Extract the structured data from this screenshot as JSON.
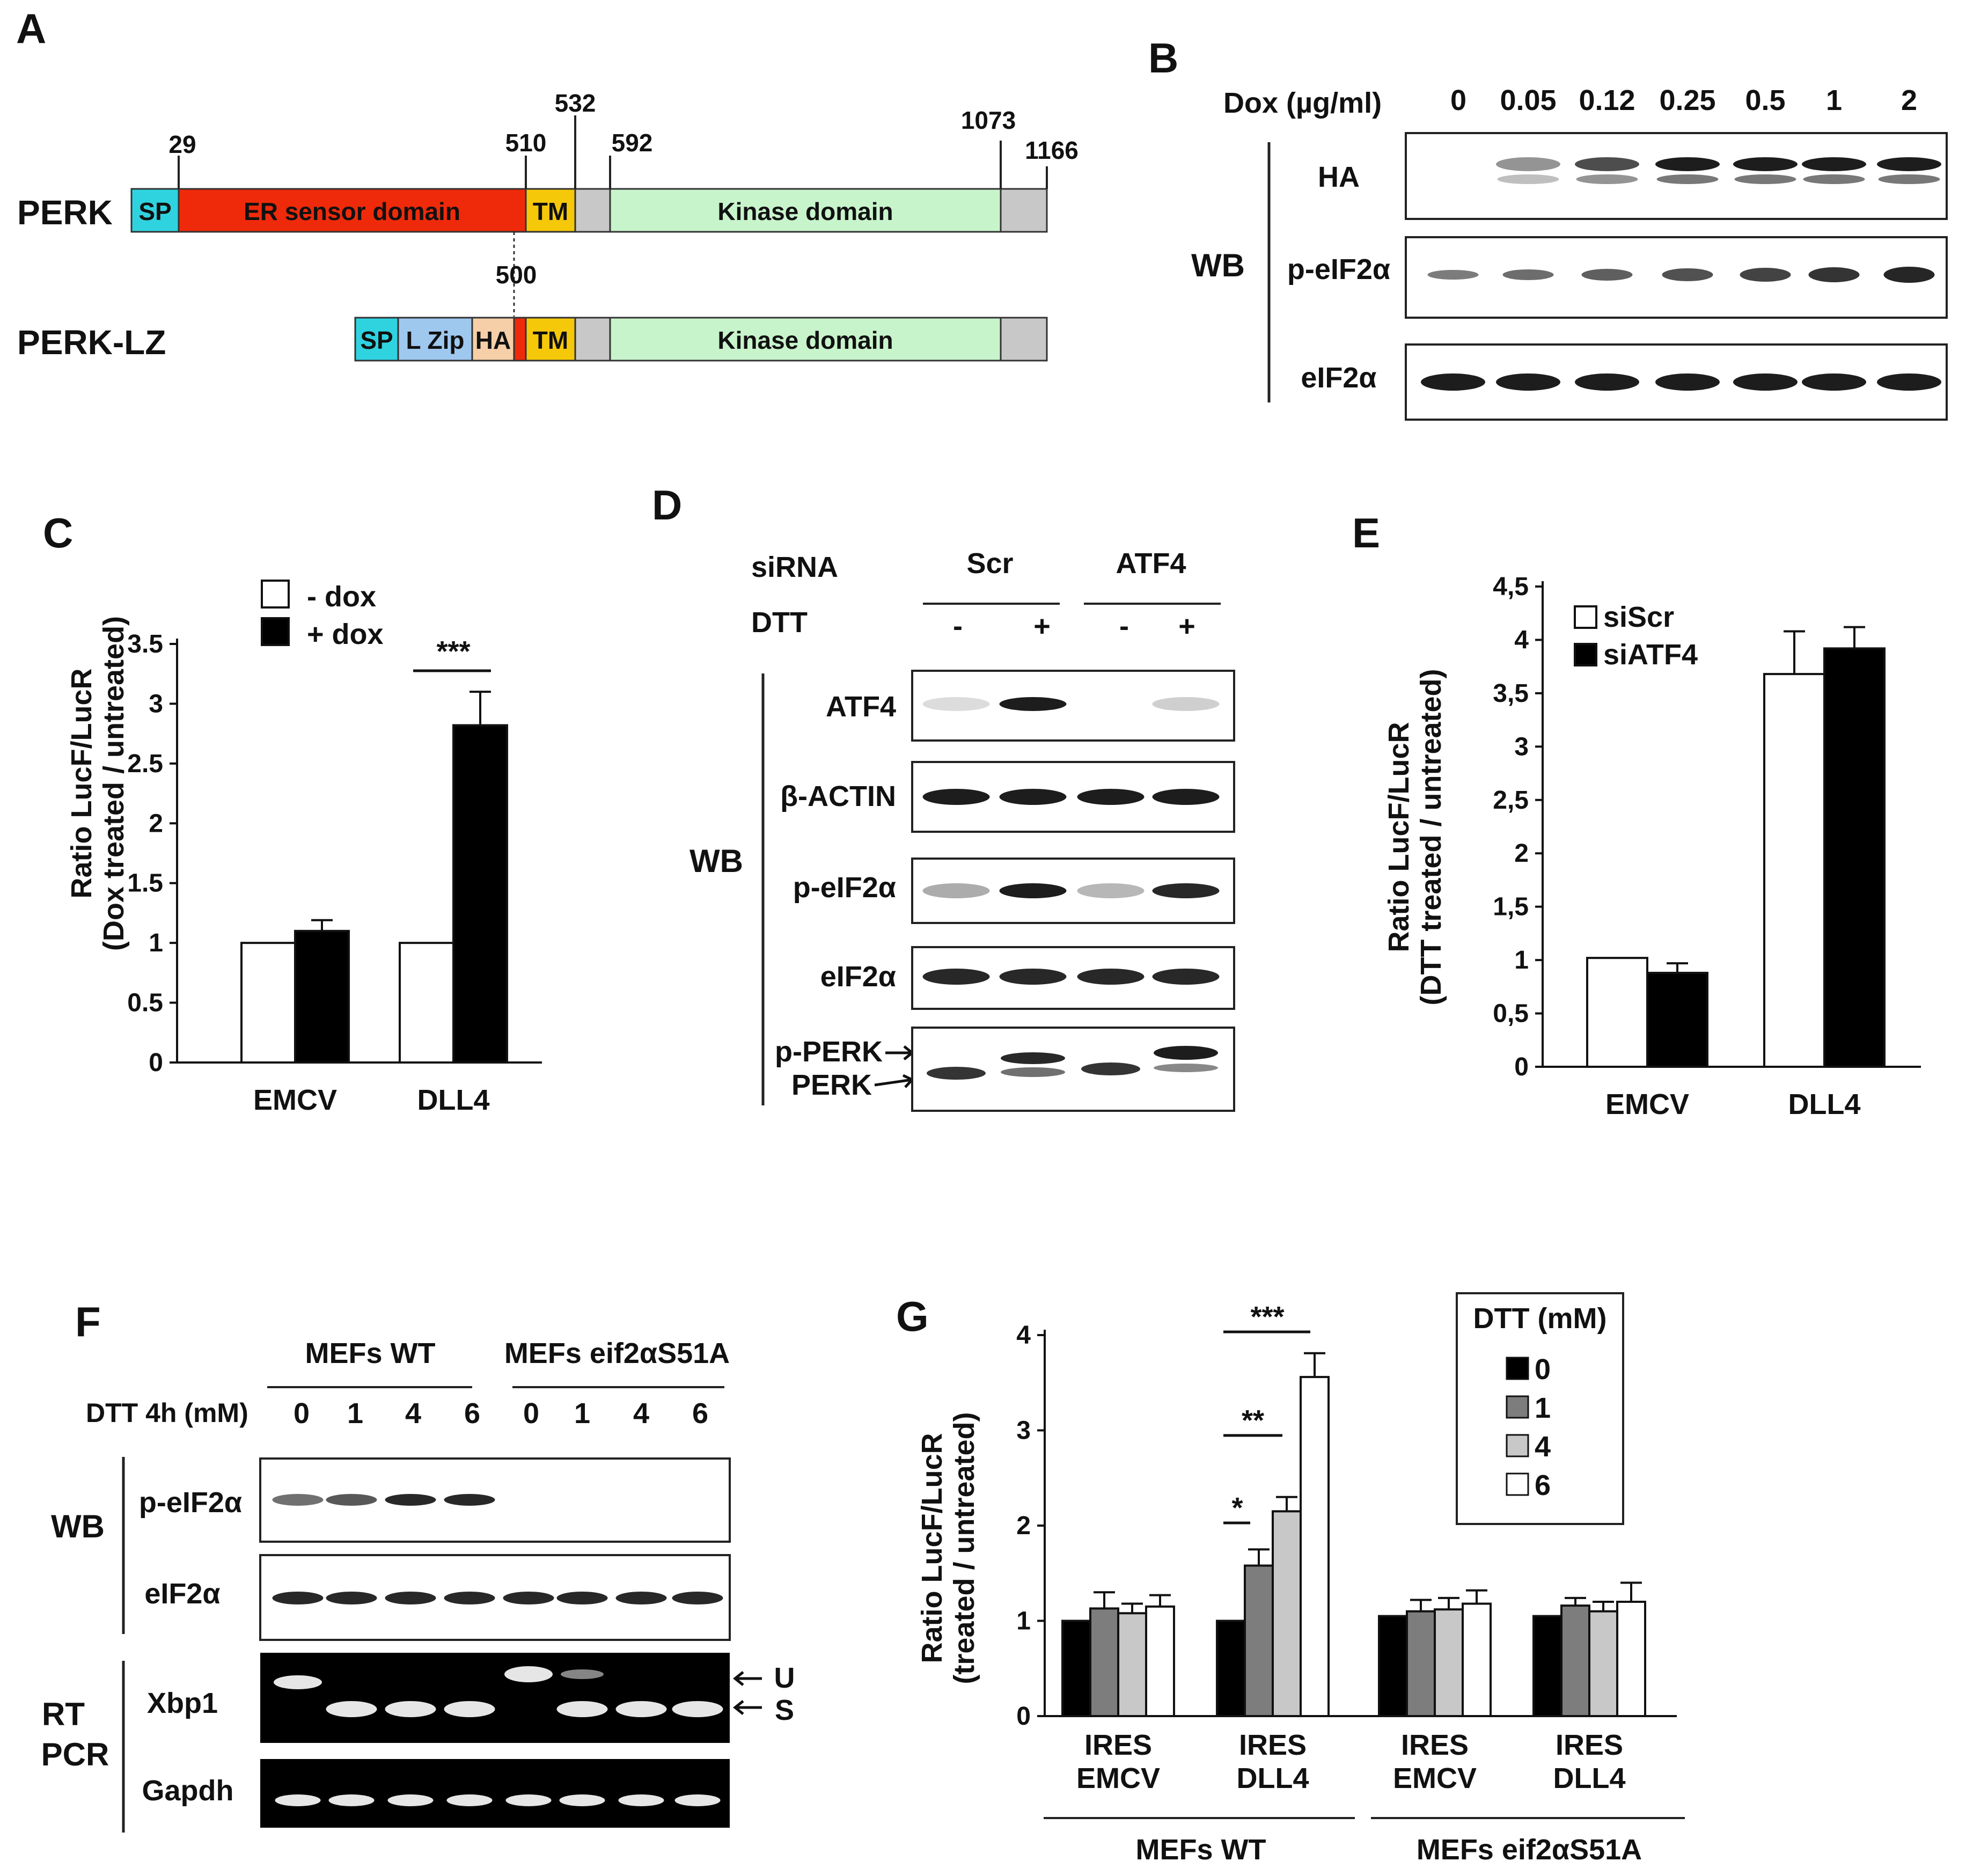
{
  "panels": {
    "A": {
      "letter": "A",
      "perk": {
        "name": "PERK",
        "numbers": [
          "29",
          "510",
          "532",
          "592",
          "1073",
          "1166"
        ],
        "domains": [
          "SP",
          "ER sensor domain",
          "TM",
          "Kinase domain"
        ]
      },
      "perk_lz": {
        "name": "PERK-LZ",
        "number": "500",
        "domains": [
          "SP",
          "L Zip",
          "HA",
          "TM",
          "Kinase domain"
        ]
      },
      "colors": {
        "sp": "#2fd3e0",
        "er": "#ef2a0a",
        "tm": "#f6c80a",
        "kinase": "#c8f4cb",
        "gray": "#c8c8c8",
        "lzip": "#9fc8ef",
        "ha": "#f6cfa8"
      }
    },
    "B": {
      "letter": "B",
      "dox_label": "Dox (µg/ml)",
      "doses": [
        "0",
        "0.05",
        "0.12",
        "0.25",
        "0.5",
        "1",
        "2"
      ],
      "wb": "WB",
      "rows": [
        "HA",
        "p-eIF2α",
        "eIF2α"
      ]
    },
    "C": {
      "letter": "C",
      "ylabel1": "Ratio LucF/LucR",
      "ylabel2": "(Dox treated / untreated)",
      "legend": [
        "- dox",
        "+ dox"
      ],
      "significance": "***",
      "yticks": [
        "0",
        "0.5",
        "1",
        "1.5",
        "2",
        "2.5",
        "3",
        "3.5"
      ]
    },
    "D": {
      "letter": "D",
      "sirna": "siRNA",
      "groups": [
        "Scr",
        "ATF4"
      ],
      "dtt": "DTT",
      "treat": [
        "-",
        "+",
        "-",
        "+"
      ],
      "wb": "WB",
      "rows": [
        "ATF4",
        "β-ACTIN",
        "p-eIF2α",
        "eIF2α",
        "p-PERK",
        "PERK"
      ]
    },
    "E": {
      "letter": "E",
      "ylabel1": "Ratio LucF/LucR",
      "ylabel2": "(DTT treated / untreated)",
      "legend": [
        "siScr",
        "siATF4"
      ],
      "yticks": [
        "0",
        "0,5",
        "1",
        "1,5",
        "2",
        "2,5",
        "3",
        "3,5",
        "4",
        "4,5"
      ]
    },
    "F": {
      "letter": "F",
      "groups": [
        "MEFs WT",
        "MEFs eif2αS51A"
      ],
      "dtt": "DTT 4h (mM)",
      "doses": [
        "0",
        "1",
        "4",
        "6",
        "0",
        "1",
        "4",
        "6"
      ],
      "wb": "WB",
      "rtpcr1": "RT",
      "rtpcr2": "PCR",
      "rows": [
        "p-eIF2α",
        "eIF2α",
        "Xbp1",
        "Gapdh"
      ],
      "arrows": [
        "U",
        "S"
      ]
    },
    "G": {
      "letter": "G",
      "ylabel1": "Ratio LucF/LucR",
      "ylabel2": "(treated / untreated)",
      "legend_title": "DTT (mM)",
      "legend": [
        "0",
        "1",
        "4",
        "6"
      ],
      "groups": [
        "MEFs WT",
        "MEFs eif2αS51A"
      ],
      "significance": [
        "*",
        "**",
        "***"
      ],
      "yticks": [
        "0",
        "1",
        "2",
        "3",
        "4"
      ]
    }
  },
  "chart_data": [
    {
      "type": "bar",
      "panel": "C",
      "categories": [
        "EMCV",
        "DLL4"
      ],
      "series": [
        {
          "name": "- dox",
          "values": [
            1.0,
            1.0
          ],
          "error": [
            0,
            0
          ],
          "color": "#ffffff"
        },
        {
          "name": "+ dox",
          "values": [
            1.1,
            2.82
          ],
          "error": [
            0.09,
            0.28
          ],
          "color": "#000000"
        }
      ],
      "ylim": [
        0,
        3.5
      ]
    },
    {
      "type": "bar",
      "panel": "E",
      "categories": [
        "EMCV",
        "DLL4"
      ],
      "series": [
        {
          "name": "siScr",
          "values": [
            1.02,
            3.68
          ],
          "error": [
            0,
            0.4
          ],
          "color": "#ffffff"
        },
        {
          "name": "siATF4",
          "values": [
            0.88,
            3.92
          ],
          "error": [
            0.09,
            0.2
          ],
          "color": "#000000"
        }
      ],
      "ylim": [
        0,
        4.5
      ]
    },
    {
      "type": "bar",
      "panel": "G",
      "categories": [
        [
          "IRES",
          "EMCV"
        ],
        [
          "IRES",
          "DLL4"
        ],
        [
          "IRES",
          "EMCV"
        ],
        [
          "IRES",
          "DLL4"
        ]
      ],
      "series": [
        {
          "name": "0",
          "values": [
            1.0,
            1.0,
            1.05,
            1.05
          ],
          "error": [
            0,
            0,
            0,
            0
          ],
          "color": "#000000"
        },
        {
          "name": "1",
          "values": [
            1.13,
            1.58,
            1.1,
            1.16
          ],
          "error": [
            0.17,
            0.17,
            0.12,
            0.08
          ],
          "color": "#7d7d7d"
        },
        {
          "name": "4",
          "values": [
            1.08,
            2.15,
            1.12,
            1.1
          ],
          "error": [
            0.1,
            0.15,
            0.12,
            0.1
          ],
          "color": "#c8c8c8"
        },
        {
          "name": "6",
          "values": [
            1.15,
            3.56,
            1.18,
            1.2
          ],
          "error": [
            0.12,
            0.25,
            0.14,
            0.2
          ],
          "color": "#ffffff"
        }
      ],
      "ylim": [
        0,
        4
      ]
    }
  ]
}
